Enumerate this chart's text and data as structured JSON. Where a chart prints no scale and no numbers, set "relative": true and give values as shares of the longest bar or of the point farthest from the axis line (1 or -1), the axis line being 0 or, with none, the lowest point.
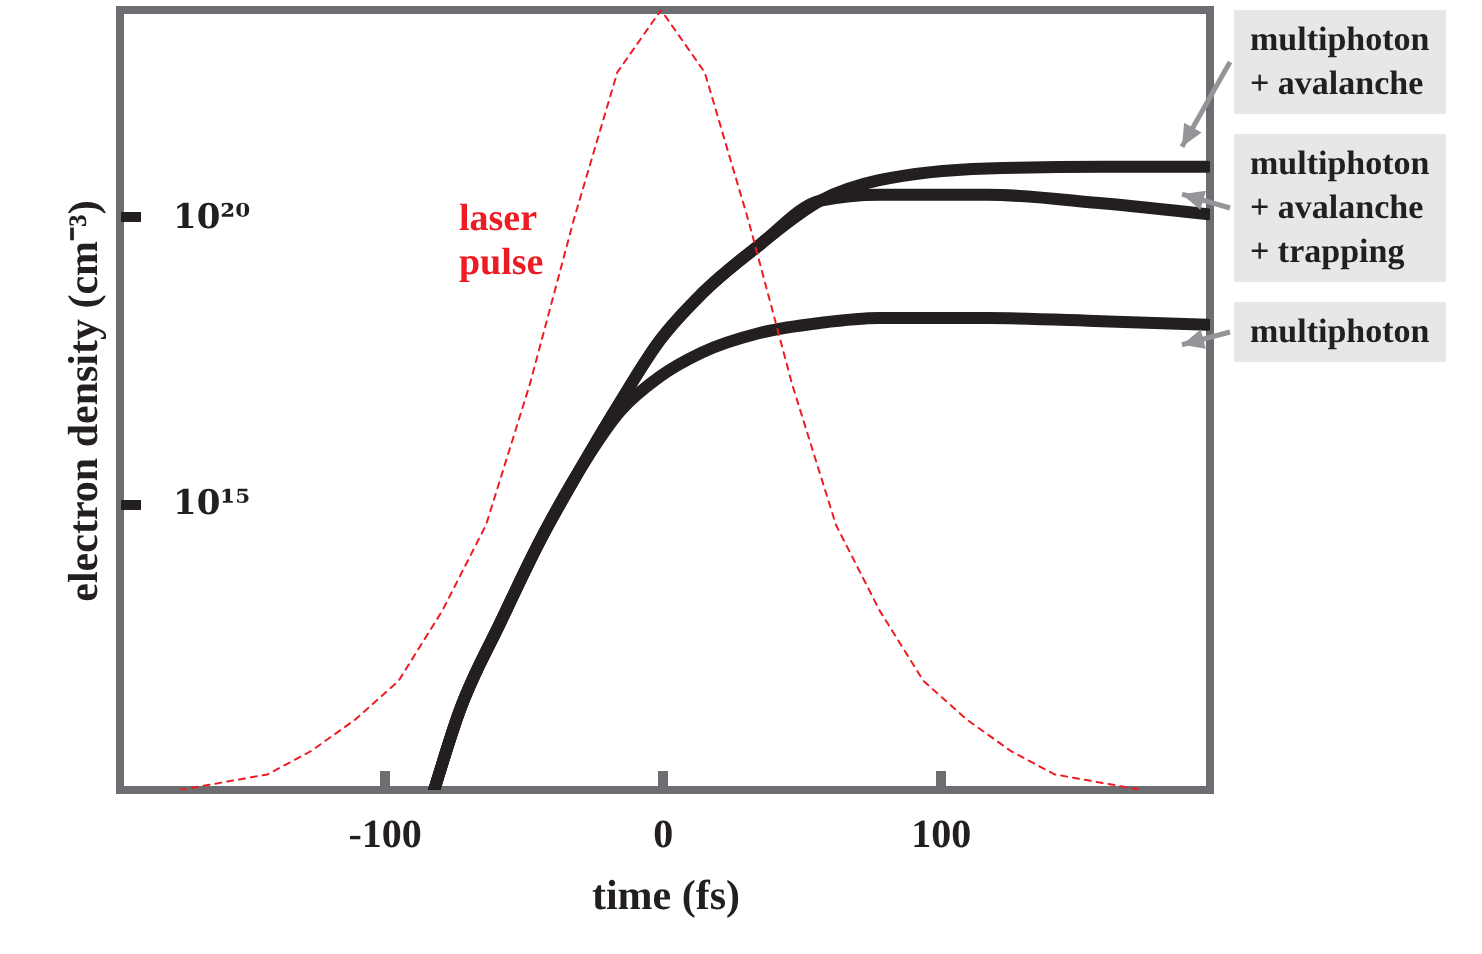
{
  "chart_data": [
    {
      "type": "line",
      "xlabel": "time (fs)",
      "ylabel": "electron density (cm⁻³)",
      "log": "y",
      "xlim": [
        -195,
        197
      ],
      "xticks": [
        -100,
        0,
        100
      ],
      "ylim": [
        10000000000.0,
        4e+23
      ],
      "yticks": [
        {
          "value": 1000000000000000.0,
          "label": "10¹⁵"
        },
        {
          "value": 1e+20,
          "label": "10²⁰"
        }
      ],
      "series": [
        {
          "name": "multiphoton + avalanche",
          "color": "#231f20",
          "line_style": "solid",
          "x": [
            -82,
            -73,
            -58,
            -44,
            -30,
            -15,
            -1,
            14,
            35,
            57,
            78,
            117,
            158,
            196
          ],
          "values": [
            10000000000.0,
            230000000000.0,
            8700000000000.0,
            220000000000000.0,
            3600000000000000.0,
            6e+16,
            6.8e+17,
            4.4e+18,
            3.2e+19,
            1.9e+20,
            4.3e+20,
            6.9e+20,
            7.4e+20,
            7.4e+20
          ]
        },
        {
          "name": "multiphoton + avalanche + trapping",
          "color": "#231f20",
          "line_style": "solid",
          "x": [
            -82,
            -73,
            -58,
            -44,
            -30,
            -15,
            -1,
            14,
            35,
            57,
            78,
            117,
            158,
            196
          ],
          "values": [
            10000000000.0,
            230000000000.0,
            8700000000000.0,
            220000000000000.0,
            3600000000000000.0,
            6e+16,
            6.8e+17,
            4.4e+18,
            3.2e+19,
            1.9e+20,
            2.4e+20,
            2.4e+20,
            1.7e+20,
            1.1e+20
          ]
        },
        {
          "name": "multiphoton",
          "color": "#231f20",
          "line_style": "solid",
          "x": [
            -82,
            -73,
            -58,
            -44,
            -30,
            -15,
            -1,
            14,
            35,
            57,
            78,
            117,
            158,
            196
          ],
          "values": [
            10000000000.0,
            230000000000.0,
            8700000000000.0,
            220000000000000.0,
            3600000000000000.0,
            4.1e+16,
            1.6e+17,
            4.2e+17,
            9.3e+17,
            1.4e+18,
            1.7e+18,
            1.7e+18,
            1.5e+18,
            1.3e+18
          ]
        }
      ]
    },
    {
      "type": "line",
      "relative": true,
      "categories": [
        null,
        null,
        null,
        null,
        null,
        null,
        null,
        null,
        null,
        null,
        null,
        null,
        null,
        null,
        null,
        null,
        null,
        null,
        null,
        null,
        null,
        null,
        null
      ],
      "series": [
        {
          "name": "laser pulse",
          "color": "#ed1c24",
          "line_style": "dotted",
          "values": [
            0,
            0.01,
            0.02,
            0.05,
            0.09,
            0.14,
            0.23,
            0.34,
            0.52,
            0.73,
            0.92,
            1,
            0.92,
            0.73,
            0.52,
            0.34,
            0.23,
            0.14,
            0.09,
            0.05,
            0.02,
            0.01,
            0
          ]
        }
      ]
    }
  ]
}
